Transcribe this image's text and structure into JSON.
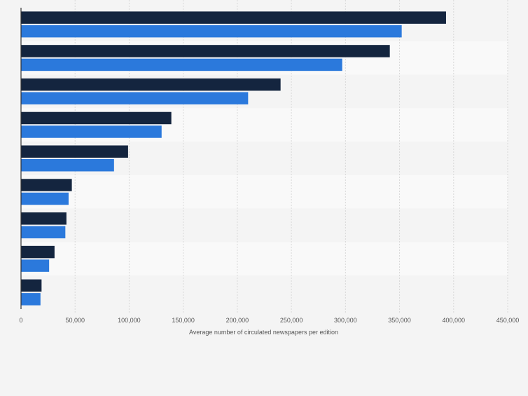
{
  "chart_data": {
    "type": "bar",
    "orientation": "horizontal",
    "title": "",
    "xlabel": "Average number of circulated newspapers per edition",
    "ylabel": "",
    "xlim": [
      0,
      450000
    ],
    "xticks": [
      0,
      50000,
      100000,
      150000,
      200000,
      250000,
      300000,
      350000,
      400000,
      450000
    ],
    "xtick_labels": [
      "0",
      "50,000",
      "100,000",
      "150,000",
      "200,000",
      "250,000",
      "300,000",
      "350,000",
      "400,000",
      "450,000"
    ],
    "categories": [
      "",
      "",
      "",
      "",
      "",
      "",
      "",
      "",
      ""
    ],
    "grid": true,
    "legend": "none",
    "colors": {
      "series1": "#14253f",
      "series2": "#2b79dc",
      "grid": "#d8d8d8",
      "axis": "#333333",
      "band_light": "#f4f4f4",
      "band_alt": "#f9f9f9",
      "background": "#f4f4f4"
    },
    "series": [
      {
        "name": "",
        "values": [
          393000,
          341000,
          240000,
          139000,
          99000,
          47000,
          42000,
          31000,
          19000
        ]
      },
      {
        "name": "",
        "values": [
          352000,
          297000,
          210000,
          130000,
          86000,
          44000,
          41000,
          26000,
          18000
        ]
      }
    ]
  }
}
